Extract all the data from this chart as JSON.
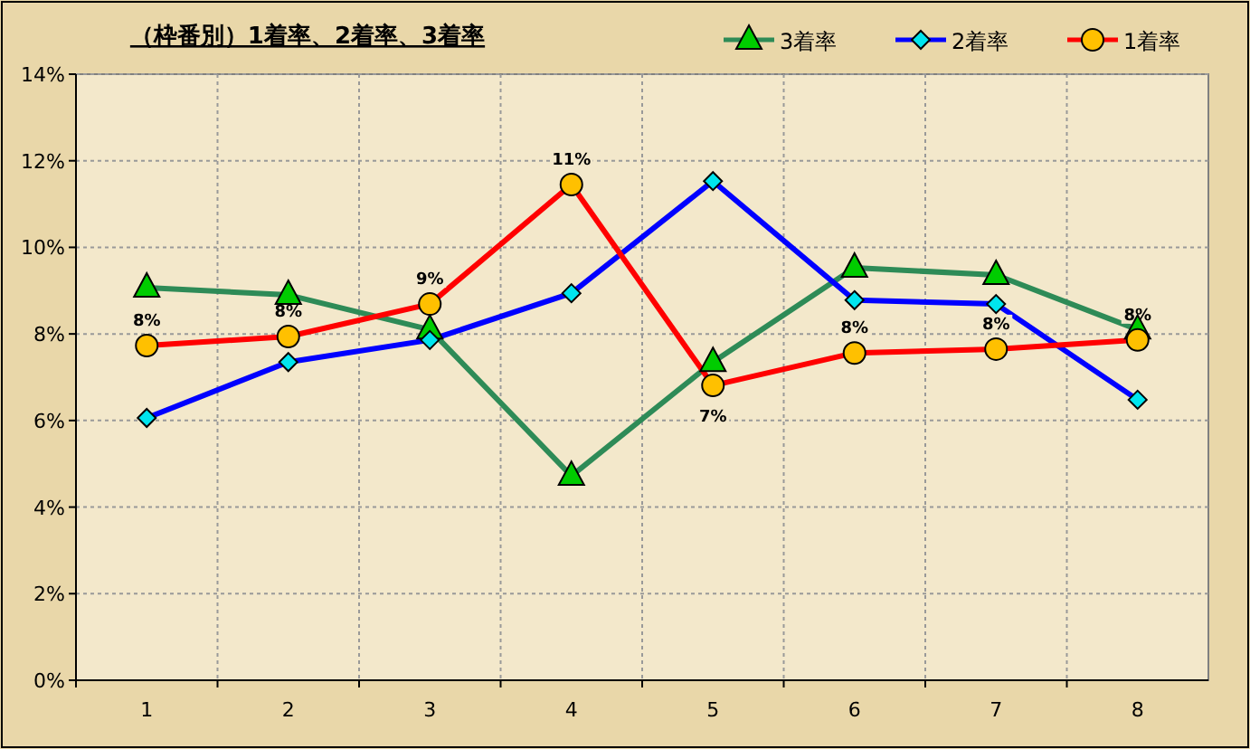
{
  "chart_data": {
    "type": "line",
    "title": "（枠番別）1着率、2着率、3着率",
    "categories": [
      "1",
      "2",
      "3",
      "4",
      "5",
      "6",
      "7",
      "8"
    ],
    "series": [
      {
        "name": "3着率",
        "color": "#2e8b57",
        "marker": "triangle",
        "values": [
          9.07,
          8.9,
          8.1,
          4.72,
          7.35,
          9.53,
          9.36,
          8.1
        ]
      },
      {
        "name": "2着率",
        "color": "#0000ff",
        "marker": "diamond",
        "values": [
          6.06,
          7.35,
          7.86,
          8.94,
          11.53,
          8.78,
          8.69,
          6.48
        ]
      },
      {
        "name": "1着率",
        "color": "#ff0000",
        "marker": "circle",
        "values": [
          7.73,
          7.94,
          8.69,
          11.45,
          6.81,
          7.56,
          7.65,
          7.86
        ],
        "value_labels": [
          "8%",
          "8%",
          "9%",
          "11%",
          "7%",
          "8%",
          "8%",
          "8%"
        ]
      }
    ],
    "ylim": [
      0,
      14
    ],
    "yticks": [
      {
        "value": 0,
        "label": "0%"
      },
      {
        "value": 2,
        "label": "2%"
      },
      {
        "value": 4,
        "label": "4%"
      },
      {
        "value": 6,
        "label": "6%"
      },
      {
        "value": 8,
        "label": "8%"
      },
      {
        "value": 10,
        "label": "10%"
      },
      {
        "value": 12,
        "label": "12%"
      },
      {
        "value": 14,
        "label": "14%"
      }
    ],
    "grid": true,
    "legend": "top right"
  }
}
